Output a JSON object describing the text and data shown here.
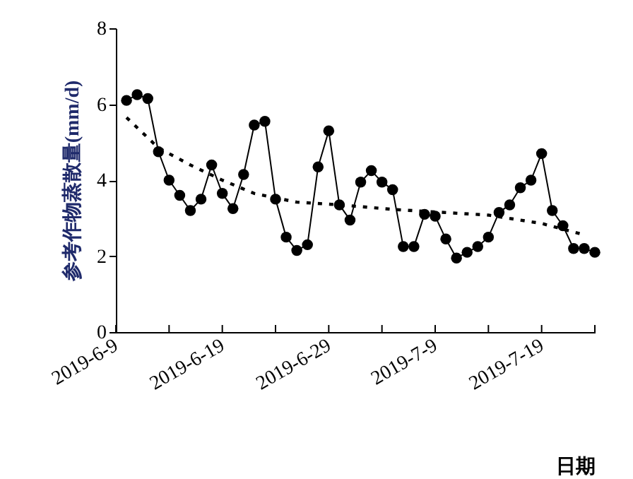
{
  "chart_data": {
    "type": "line",
    "xlabel": "日期",
    "ylabel": "参考作物蒸散量(mm/d)",
    "xlim": [
      "2019-06-09",
      "2019-07-24"
    ],
    "ylim": [
      0,
      8
    ],
    "yticks": [
      0,
      2,
      4,
      6,
      8
    ],
    "xticks": [
      {
        "value": "2019-06-09",
        "label": "2019-6-9"
      },
      {
        "value": "2019-06-14",
        "label": null
      },
      {
        "value": "2019-06-19",
        "label": "2019-6-19"
      },
      {
        "value": "2019-06-24",
        "label": null
      },
      {
        "value": "2019-06-29",
        "label": "2019-6-29"
      },
      {
        "value": "2019-07-04",
        "label": null
      },
      {
        "value": "2019-07-09",
        "label": "2019-7-9"
      },
      {
        "value": "2019-07-14",
        "label": null
      },
      {
        "value": "2019-07-19",
        "label": "2019-7-19"
      },
      {
        "value": "2019-07-24",
        "label": null
      }
    ],
    "grid": false,
    "series": [
      {
        "color": "#000000",
        "marker": "circle",
        "line_style": "solid",
        "x": [
          "2019-06-10",
          "2019-06-11",
          "2019-06-12",
          "2019-06-13",
          "2019-06-14",
          "2019-06-15",
          "2019-06-16",
          "2019-06-17",
          "2019-06-18",
          "2019-06-19",
          "2019-06-20",
          "2019-06-21",
          "2019-06-22",
          "2019-06-23",
          "2019-06-24",
          "2019-06-25",
          "2019-06-26",
          "2019-06-27",
          "2019-06-28",
          "2019-06-29",
          "2019-06-30",
          "2019-07-01",
          "2019-07-02",
          "2019-07-03",
          "2019-07-04",
          "2019-07-05",
          "2019-07-06",
          "2019-07-07",
          "2019-07-08",
          "2019-07-09",
          "2019-07-10",
          "2019-07-11",
          "2019-07-12",
          "2019-07-13",
          "2019-07-14",
          "2019-07-15",
          "2019-07-16",
          "2019-07-17",
          "2019-07-18",
          "2019-07-19",
          "2019-07-20",
          "2019-07-21",
          "2019-07-22",
          "2019-07-23",
          "2019-07-24"
        ],
        "values": [
          6.1,
          6.25,
          6.15,
          4.75,
          4.0,
          3.6,
          3.2,
          3.5,
          4.4,
          3.65,
          3.25,
          4.15,
          5.45,
          5.55,
          3.5,
          2.5,
          2.15,
          2.3,
          4.35,
          5.3,
          3.35,
          2.95,
          3.95,
          4.25,
          3.95,
          3.75,
          2.25,
          2.25,
          3.1,
          3.05,
          2.45,
          1.95,
          2.1,
          2.25,
          2.5,
          3.15,
          3.35,
          3.8,
          4.0,
          4.7,
          3.2,
          2.8,
          2.2,
          2.2,
          2.1
        ]
      },
      {
        "type": "line",
        "color": "#000000",
        "marker": "none",
        "line_style": "dotted",
        "x": [
          "2019-06-10",
          "2019-06-13",
          "2019-06-16",
          "2019-06-19",
          "2019-06-22",
          "2019-06-26",
          "2019-06-30",
          "2019-07-05",
          "2019-07-14",
          "2019-07-19",
          "2019-07-23"
        ],
        "values": [
          5.65,
          4.85,
          4.4,
          4.0,
          3.65,
          3.42,
          3.35,
          3.23,
          3.08,
          2.86,
          2.56
        ]
      }
    ]
  }
}
